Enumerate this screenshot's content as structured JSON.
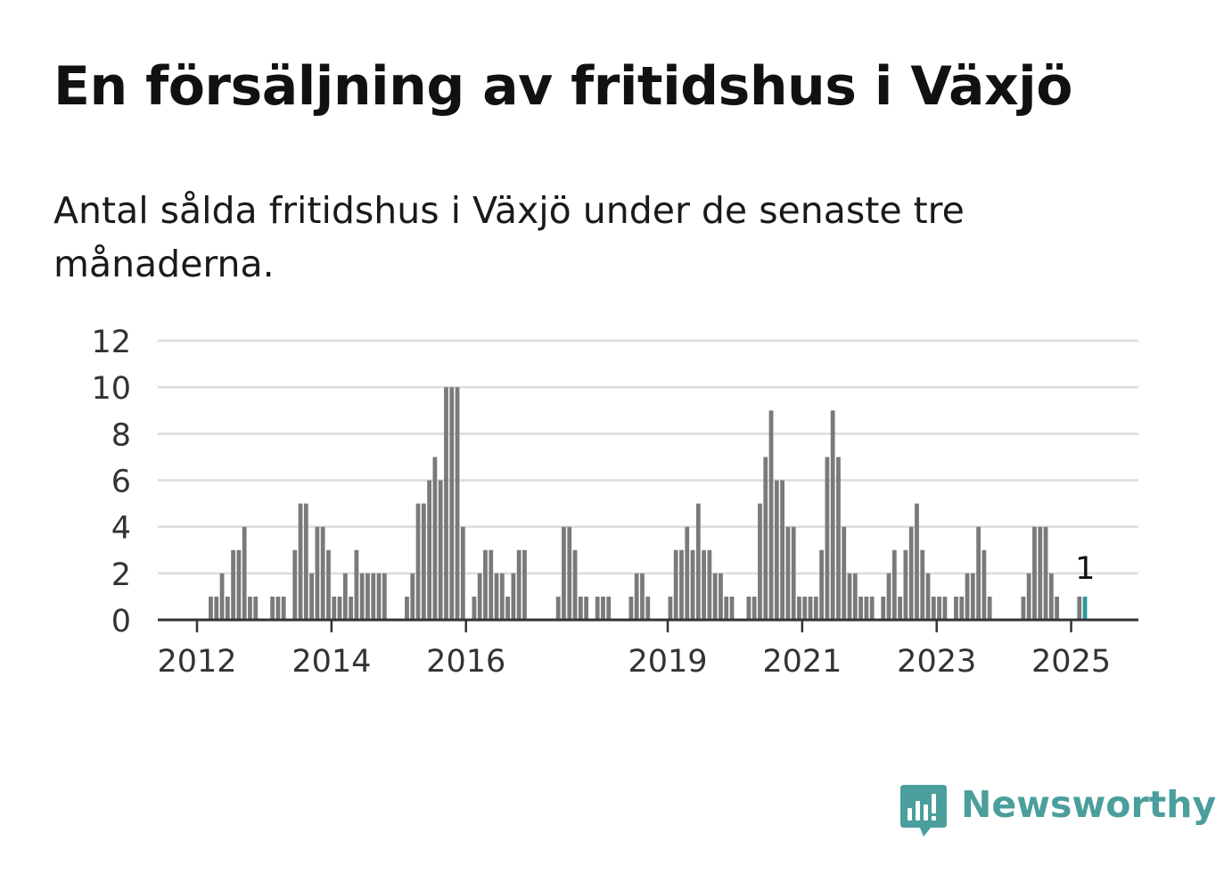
{
  "title": "En försäljning av fritidshus i Växjö",
  "subtitle": "Antal sålda fritidshus i Växjö under de senaste tre månaderna.",
  "brand": {
    "name": "Newsworthy",
    "icon": "newsworthy-logo-icon",
    "color": "#4a9e9c"
  },
  "chart_data": {
    "type": "bar",
    "ylim": [
      0,
      12
    ],
    "yticks": [
      0,
      2,
      4,
      6,
      8,
      10,
      12
    ],
    "grid": true,
    "legend": "none",
    "bar_color": "#7a797b",
    "highlight_color": "#2f9a98",
    "x_start": "2011-06",
    "x_end": "2025-12",
    "xtick_labels": [
      {
        "label": "2012",
        "date": "2012-01"
      },
      {
        "label": "2014",
        "date": "2014-01"
      },
      {
        "label": "2016",
        "date": "2016-01"
      },
      {
        "label": "2019",
        "date": "2019-01"
      },
      {
        "label": "2021",
        "date": "2021-01"
      },
      {
        "label": "2023",
        "date": "2023-01"
      },
      {
        "label": "2025",
        "date": "2025-01"
      }
    ],
    "series": [
      {
        "dates": [
          "2012-03",
          "2012-04",
          "2012-05",
          "2012-06",
          "2012-07",
          "2012-08",
          "2012-09",
          "2012-10",
          "2012-11",
          "2013-02",
          "2013-03",
          "2013-04",
          "2013-06",
          "2013-07",
          "2013-08",
          "2013-09",
          "2013-10",
          "2013-11",
          "2013-12",
          "2014-01",
          "2014-02",
          "2014-03",
          "2014-04",
          "2014-05",
          "2014-06",
          "2014-07",
          "2014-08",
          "2014-09",
          "2014-10",
          "2015-02",
          "2015-03",
          "2015-04",
          "2015-05",
          "2015-06",
          "2015-07",
          "2015-08",
          "2015-09",
          "2015-10",
          "2015-11",
          "2015-12",
          "2016-02",
          "2016-03",
          "2016-04",
          "2016-05",
          "2016-06",
          "2016-07",
          "2016-08",
          "2016-09",
          "2016-10",
          "2016-11",
          "2017-05",
          "2017-06",
          "2017-07",
          "2017-08",
          "2017-09",
          "2017-10",
          "2017-12",
          "2018-01",
          "2018-02",
          "2018-06",
          "2018-07",
          "2018-08",
          "2018-09",
          "2019-01",
          "2019-02",
          "2019-03",
          "2019-04",
          "2019-05",
          "2019-06",
          "2019-07",
          "2019-08",
          "2019-09",
          "2019-10",
          "2019-11",
          "2019-12",
          "2020-03",
          "2020-04",
          "2020-05",
          "2020-06",
          "2020-07",
          "2020-08",
          "2020-09",
          "2020-10",
          "2020-11",
          "2020-12",
          "2021-01",
          "2021-02",
          "2021-03",
          "2021-04",
          "2021-05",
          "2021-06",
          "2021-07",
          "2021-08",
          "2021-09",
          "2021-10",
          "2021-11",
          "2021-12",
          "2022-01",
          "2022-03",
          "2022-04",
          "2022-05",
          "2022-06",
          "2022-07",
          "2022-08",
          "2022-09",
          "2022-10",
          "2022-11",
          "2022-12",
          "2023-01",
          "2023-02",
          "2023-04",
          "2023-05",
          "2023-06",
          "2023-07",
          "2023-08",
          "2023-09",
          "2023-10",
          "2024-04",
          "2024-05",
          "2024-06",
          "2024-07",
          "2024-08",
          "2024-09",
          "2024-10",
          "2025-02",
          "2025-03"
        ],
        "values": [
          1,
          1,
          2,
          1,
          3,
          3,
          4,
          1,
          1,
          1,
          1,
          1,
          3,
          5,
          5,
          2,
          4,
          4,
          3,
          1,
          1,
          2,
          1,
          3,
          2,
          2,
          2,
          2,
          2,
          1,
          2,
          5,
          5,
          6,
          7,
          6,
          10,
          10,
          10,
          4,
          1,
          2,
          3,
          3,
          2,
          2,
          1,
          2,
          3,
          3,
          1,
          4,
          4,
          3,
          1,
          1,
          1,
          1,
          1,
          1,
          2,
          2,
          1,
          1,
          3,
          3,
          4,
          3,
          5,
          3,
          3,
          2,
          2,
          1,
          1,
          1,
          1,
          5,
          7,
          9,
          6,
          6,
          4,
          4,
          1,
          1,
          1,
          1,
          3,
          7,
          9,
          7,
          4,
          2,
          2,
          1,
          1,
          1,
          1,
          2,
          3,
          1,
          3,
          4,
          5,
          3,
          2,
          1,
          1,
          1,
          1,
          1,
          2,
          2,
          4,
          3,
          1,
          1,
          2,
          4,
          4,
          4,
          2,
          1,
          1,
          1
        ]
      }
    ],
    "highlight": {
      "date": "2025-03",
      "value": 1,
      "label": "1"
    }
  }
}
